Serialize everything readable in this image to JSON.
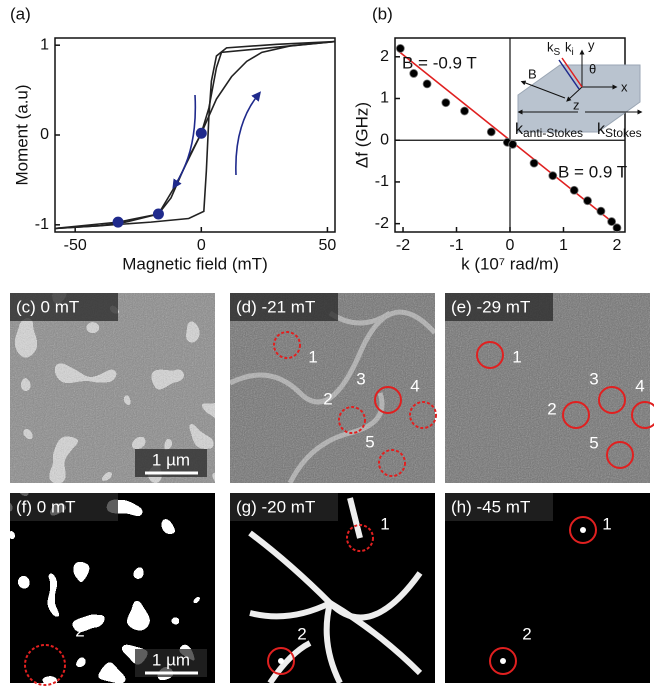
{
  "chart_data": [
    {
      "type": "line",
      "panel_label": "(a)",
      "x_label": "Magnetic field (mT)",
      "y_label": "Moment (a.u)",
      "xlim": [
        -58,
        53
      ],
      "ylim": [
        -1.08,
        1.08
      ],
      "xticks": [
        -50,
        0,
        50
      ],
      "yticks": [
        -1,
        0,
        1
      ],
      "series": [
        {
          "color": "#222222",
          "x": [
            53,
            30,
            10,
            6,
            4,
            3,
            2,
            1,
            -5,
            -20,
            -40,
            -58
          ],
          "values": [
            1.04,
            1.01,
            0.97,
            0.88,
            0.6,
            0.2,
            -0.4,
            -0.85,
            -0.93,
            -0.97,
            -1.01,
            -1.04
          ]
        },
        {
          "color": "#222222",
          "x": [
            -58,
            -40,
            -30,
            -17,
            -12,
            -5,
            0,
            3,
            6,
            8,
            53
          ],
          "values": [
            -1.04,
            -1.01,
            -0.97,
            -0.88,
            -0.7,
            -0.25,
            0.02,
            0.3,
            0.75,
            0.92,
            1.04
          ]
        },
        {
          "color": "#222222",
          "x": [
            -58,
            -33,
            -17,
            -10,
            0,
            6,
            12,
            18,
            24,
            35,
            53
          ],
          "values": [
            -1.04,
            -0.97,
            -0.88,
            -0.55,
            0.02,
            0.4,
            0.65,
            0.82,
            0.92,
            0.99,
            1.04
          ]
        }
      ],
      "points": {
        "color": "#1f2a8c",
        "x": [
          -33,
          -17,
          0
        ],
        "values": [
          -0.97,
          -0.88,
          0.02
        ]
      }
    },
    {
      "type": "scatter",
      "panel_label": "(b)",
      "x_label": "k (10⁷ rad/m)",
      "y_label": "Δf (GHz)",
      "xlim": [
        -2.15,
        2.15
      ],
      "ylim": [
        -2.2,
        2.45
      ],
      "xticks": [
        -2,
        -1,
        0,
        1,
        2
      ],
      "yticks": [
        -2,
        -1,
        0,
        1,
        2
      ],
      "annotations": [
        "B = -0.9 T",
        "B = 0.9 T"
      ],
      "x": [
        -2.05,
        -1.8,
        -1.55,
        -1.2,
        -0.85,
        -0.35,
        -0.05,
        0.05,
        0.45,
        0.8,
        1.2,
        1.45,
        1.7,
        1.9,
        2.0
      ],
      "values": [
        2.2,
        1.6,
        1.35,
        0.9,
        0.7,
        0.2,
        -0.05,
        -0.1,
        -0.55,
        -0.85,
        -1.2,
        -1.45,
        -1.7,
        -1.95,
        -2.1
      ],
      "color": "#000000",
      "fit": {
        "color": "#e02020",
        "x": [
          -2.1,
          2.05
        ],
        "values": [
          2.15,
          -2.1
        ]
      },
      "inset_labels": [
        {
          "text": "k",
          "sub": "S"
        },
        {
          "text": "k",
          "sub": "i"
        },
        {
          "text": "y"
        },
        {
          "text": "θ"
        },
        {
          "text": "B"
        },
        {
          "text": "z"
        },
        {
          "text": "x"
        },
        {
          "text": "k",
          "sub": "anti-Stokes"
        },
        {
          "text": "k",
          "sub": "Stokes"
        }
      ]
    }
  ],
  "images": [
    {
      "label": "(c) 0 mT",
      "scale_bar": "1 µm",
      "markers": []
    },
    {
      "label": "(d) -21 mT",
      "markers": [
        "1",
        "2",
        "3",
        "4",
        "5"
      ]
    },
    {
      "label": "(e) -29 mT",
      "markers": [
        "1",
        "2",
        "3",
        "4",
        "5"
      ]
    },
    {
      "label": "(f) 0 mT",
      "scale_bar": "1 µm",
      "markers": [
        "2"
      ]
    },
    {
      "label": "(g) -20 mT",
      "markers": [
        "1",
        "2"
      ]
    },
    {
      "label": "(h) -45 mT",
      "markers": [
        "1",
        "2"
      ]
    }
  ]
}
